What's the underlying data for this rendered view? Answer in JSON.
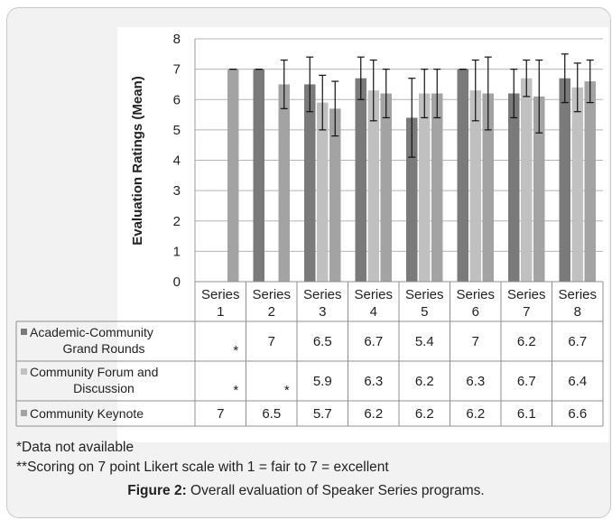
{
  "chart_data": {
    "type": "bar",
    "ylabel": "Evaluation Ratings (Mean)",
    "ylim": [
      0,
      8
    ],
    "yticks": [
      0,
      1,
      2,
      3,
      4,
      5,
      6,
      7,
      8
    ],
    "grid": true,
    "categories": [
      "Series 1",
      "Series 2",
      "Series 3",
      "Series 4",
      "Series 5",
      "Series 6",
      "Series 7",
      "Series 8"
    ],
    "category_lines": [
      [
        "Series",
        "1"
      ],
      [
        "Series",
        "2"
      ],
      [
        "Series",
        "3"
      ],
      [
        "Series",
        "4"
      ],
      [
        "Series",
        "5"
      ],
      [
        "Series",
        "6"
      ],
      [
        "Series",
        "7"
      ],
      [
        "Series",
        "8"
      ]
    ],
    "series": [
      {
        "name": "Academic-Community Grand Rounds",
        "legend_lines": [
          "Academic-Community",
          "Grand Rounds"
        ],
        "color": "#7a7a7a",
        "values": [
          null,
          7,
          6.5,
          6.7,
          5.4,
          7,
          6.2,
          6.7
        ],
        "table_values": [
          "*",
          "7",
          "6.5",
          "6.7",
          "5.4",
          "7",
          "6.2",
          "6.7"
        ],
        "err_lo": [
          null,
          7,
          5.6,
          6.0,
          4.1,
          7,
          5.4,
          5.9
        ],
        "err_hi": [
          null,
          7,
          7.4,
          7.4,
          6.7,
          7,
          7.0,
          7.5
        ]
      },
      {
        "name": "Community Forum and Discussion",
        "legend_lines": [
          "Community Forum and",
          "Discussion"
        ],
        "color": "#c0c0c0",
        "values": [
          null,
          null,
          5.9,
          6.3,
          6.2,
          6.3,
          6.7,
          6.4
        ],
        "table_values": [
          "*",
          "*",
          "5.9",
          "6.3",
          "6.2",
          "6.3",
          "6.7",
          "6.4"
        ],
        "err_lo": [
          null,
          null,
          5.0,
          5.3,
          5.4,
          5.3,
          6.1,
          5.6
        ],
        "err_hi": [
          null,
          null,
          6.8,
          7.3,
          7.0,
          7.3,
          7.3,
          7.2
        ]
      },
      {
        "name": "Community Keynote",
        "legend_lines": [
          "Community Keynote"
        ],
        "color": "#a3a3a3",
        "values": [
          7,
          6.5,
          5.7,
          6.2,
          6.2,
          6.2,
          6.1,
          6.6
        ],
        "table_values": [
          "7",
          "6.5",
          "5.7",
          "6.2",
          "6.2",
          "6.2",
          "6.1",
          "6.6"
        ],
        "err_lo": [
          7,
          5.7,
          4.8,
          5.4,
          5.4,
          5.0,
          4.9,
          5.9
        ],
        "err_hi": [
          7,
          7.3,
          6.6,
          7.0,
          7.0,
          7.4,
          7.3,
          7.3
        ]
      }
    ]
  },
  "notes": {
    "missing": "*Data not available",
    "scale": "**Scoring on 7 point Likert scale with 1 = fair to 7 = excellent"
  },
  "caption": {
    "label": "Figure 2:",
    "text": " Overall evaluation of Speaker Series programs."
  }
}
